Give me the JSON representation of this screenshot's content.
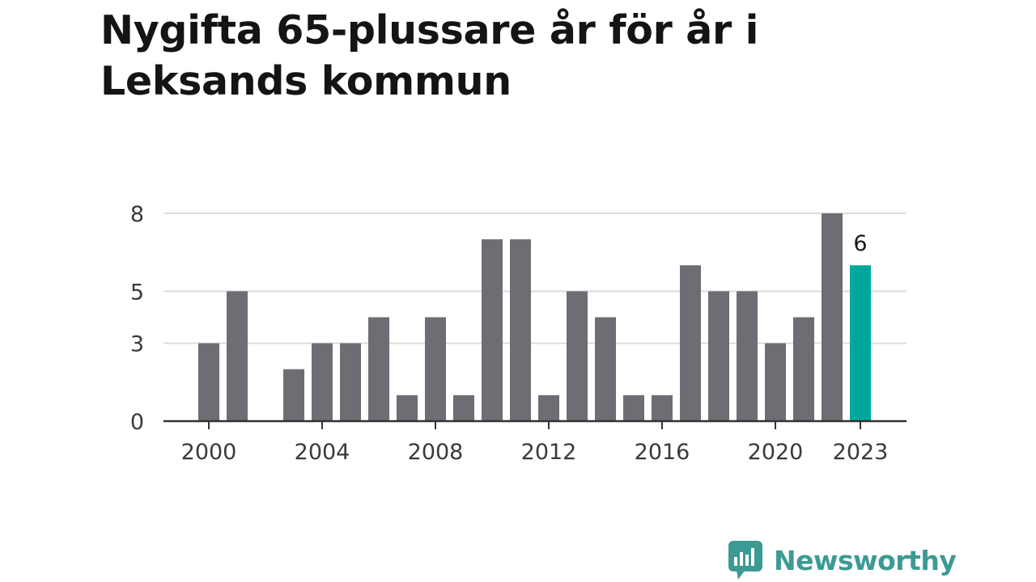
{
  "title": "Nygifta 65-plussare år för år i Leksands kommun",
  "brand": {
    "name": "Newsworthy",
    "icon": "newsworthy-logo-icon",
    "color": "#3c9a94"
  },
  "chart_data": {
    "type": "bar",
    "title": "Nygifta 65-plussare år för år i Leksands kommun",
    "xlabel": "",
    "ylabel": "",
    "categories": [
      "2000",
      "2001",
      "2002",
      "2003",
      "2004",
      "2005",
      "2006",
      "2007",
      "2008",
      "2009",
      "2010",
      "2011",
      "2012",
      "2013",
      "2014",
      "2015",
      "2016",
      "2017",
      "2018",
      "2019",
      "2020",
      "2021",
      "2022",
      "2023"
    ],
    "values": [
      3,
      5,
      0,
      2,
      3,
      3,
      4,
      1,
      4,
      1,
      7,
      7,
      1,
      5,
      4,
      1,
      1,
      6,
      5,
      5,
      3,
      4,
      8,
      6
    ],
    "yticks": [
      0,
      3,
      5,
      8
    ],
    "ytick_labels": [
      "0",
      "3",
      "5",
      "8"
    ],
    "xtick_labels": [
      "2000",
      "2004",
      "2008",
      "2012",
      "2016",
      "2020",
      "2023"
    ],
    "ylim": [
      0,
      8
    ],
    "grid": true,
    "bar_color": "#6d6d73",
    "highlight_color": "#00a89c",
    "highlight_category": "2023",
    "data_labels": [
      {
        "category": "2023",
        "text": "6"
      }
    ]
  }
}
